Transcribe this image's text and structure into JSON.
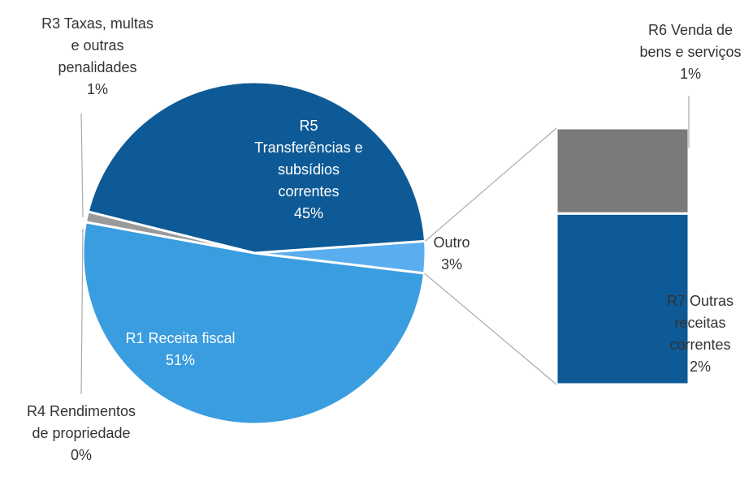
{
  "chart_data": {
    "type": "pie",
    "categories": [
      [
        "Outro"
      ],
      [
        "R5",
        "Transferências e",
        "subsídios",
        "correntes"
      ],
      [
        "R3 Taxas, multas",
        "e outras",
        "penalidades"
      ],
      [
        "R4 Rendimentos",
        "de propriedade"
      ],
      [
        "R1 Receita fiscal"
      ]
    ],
    "values": [
      3,
      45,
      1,
      0,
      51
    ],
    "value_labels": [
      "3%",
      "45%",
      "1%",
      "0%",
      "51%"
    ],
    "colors": [
      "#5aaef0",
      "#0e5a96",
      "#9a9a9a",
      "#bdbdbd",
      "#3a9de0"
    ],
    "secondary": {
      "categories": [
        [
          "R6 Venda de",
          "bens e serviços"
        ],
        [
          "R7 Outras",
          "receitas",
          "correntes"
        ]
      ],
      "values": [
        1,
        2
      ],
      "value_labels": [
        "1%",
        "2%"
      ],
      "colors": [
        "#7a7a7a",
        "#0e5a96"
      ]
    }
  }
}
